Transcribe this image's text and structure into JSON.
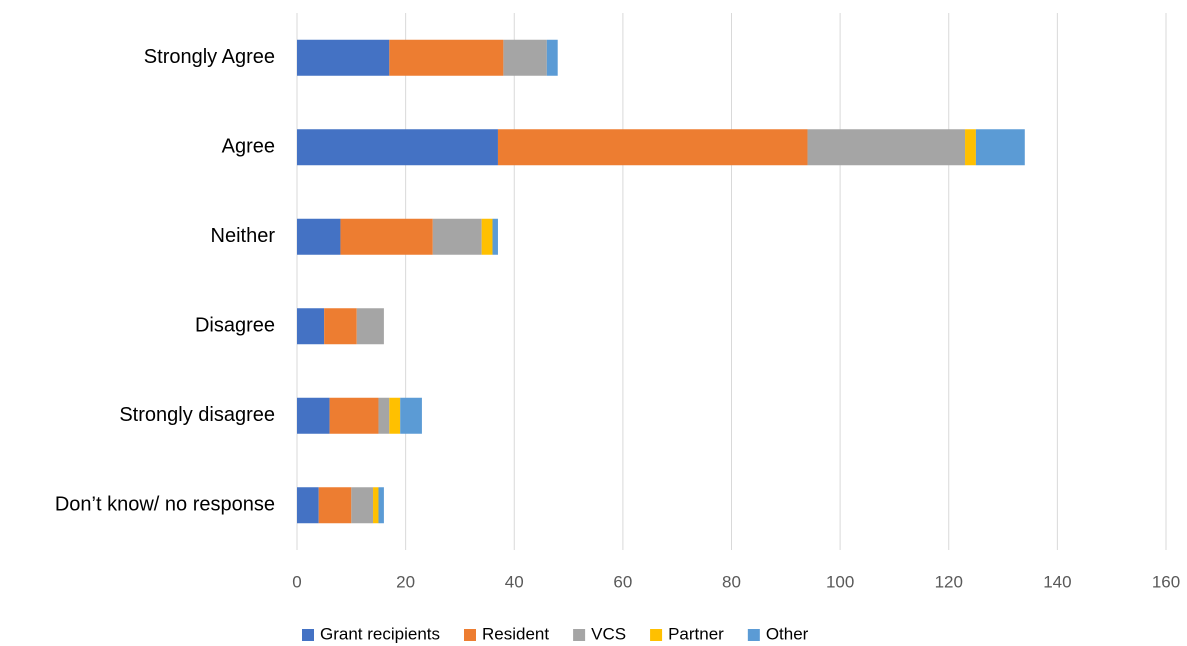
{
  "chart_data": {
    "type": "stacked-bar-horizontal",
    "categories": [
      "Strongly Agree",
      "Agree",
      "Neither",
      "Disagree",
      "Strongly disagree",
      "Don’t know/ no response"
    ],
    "series": [
      {
        "name": "Grant recipients",
        "color": "#4472c4",
        "values": [
          17,
          37,
          8,
          5,
          6,
          4
        ]
      },
      {
        "name": "Resident",
        "color": "#ed7d31",
        "values": [
          21,
          57,
          17,
          6,
          9,
          6
        ]
      },
      {
        "name": "VCS",
        "color": "#a5a5a5",
        "values": [
          8,
          29,
          9,
          5,
          2,
          4
        ]
      },
      {
        "name": "Partner",
        "color": "#ffc000",
        "values": [
          0,
          2,
          2,
          0,
          2,
          1
        ]
      },
      {
        "name": "Other",
        "color": "#5b9bd5",
        "values": [
          2,
          9,
          1,
          0,
          4,
          1
        ]
      }
    ],
    "xlim": [
      0,
      160
    ],
    "xticks": [
      0,
      20,
      40,
      60,
      80,
      100,
      120,
      140,
      160
    ],
    "grid": true,
    "legend": "bottom"
  }
}
